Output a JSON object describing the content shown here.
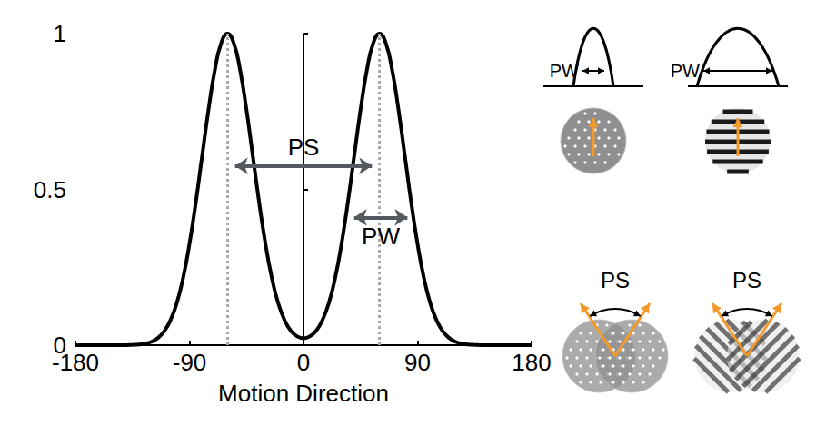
{
  "chart_data": {
    "type": "line",
    "x_label": "Motion Direction",
    "x": [
      -180,
      -175,
      -170,
      -165,
      -160,
      -155,
      -150,
      -145,
      -140,
      -135,
      -130,
      -125,
      -120,
      -115,
      -110,
      -105,
      -100,
      -95,
      -90,
      -85,
      -80,
      -75,
      -70,
      -65,
      -60,
      -55,
      -50,
      -45,
      -40,
      -35,
      -30,
      -25,
      -20,
      -15,
      -10,
      -5,
      0,
      5,
      10,
      15,
      20,
      25,
      30,
      35,
      40,
      45,
      50,
      55,
      60,
      65,
      70,
      75,
      80,
      85,
      90,
      95,
      100,
      105,
      110,
      115,
      120,
      125,
      130,
      135,
      140,
      145,
      150,
      155,
      160,
      165,
      170,
      175,
      180
    ],
    "values": [
      0,
      0,
      0,
      0,
      0,
      0,
      0,
      0,
      0,
      0.001,
      0.002,
      0.005,
      0.011,
      0.023,
      0.044,
      0.08,
      0.135,
      0.216,
      0.325,
      0.458,
      0.607,
      0.755,
      0.882,
      0.969,
      1,
      0.969,
      0.882,
      0.755,
      0.607,
      0.458,
      0.325,
      0.216,
      0.135,
      0.081,
      0.046,
      0.028,
      0.022,
      0.028,
      0.046,
      0.081,
      0.135,
      0.216,
      0.325,
      0.458,
      0.607,
      0.755,
      0.882,
      0.969,
      1,
      0.969,
      0.882,
      0.755,
      0.607,
      0.458,
      0.325,
      0.216,
      0.135,
      0.08,
      0.044,
      0.023,
      0.011,
      0.005,
      0.002,
      0.001,
      0,
      0,
      0,
      0,
      0,
      0,
      0,
      0,
      0
    ],
    "color": "#000000",
    "xlim": [
      -180,
      180
    ],
    "xticks": [
      -180,
      -90,
      0,
      90,
      180
    ],
    "ylim": [
      0,
      1
    ],
    "yticks": [
      0,
      0.5,
      1
    ],
    "grid": false,
    "peak_lines": [
      -60,
      60
    ],
    "annotations": [
      {
        "text": "PS",
        "x_from": -54,
        "x_to": 54,
        "y": 0.575
      },
      {
        "text": "PW",
        "x_from": 40,
        "x_to": 82,
        "y": 0.41
      }
    ],
    "insets": {
      "top_labels": [
        "PW",
        "PW"
      ],
      "bottom_labels": [
        "PS",
        "PS"
      ]
    }
  }
}
